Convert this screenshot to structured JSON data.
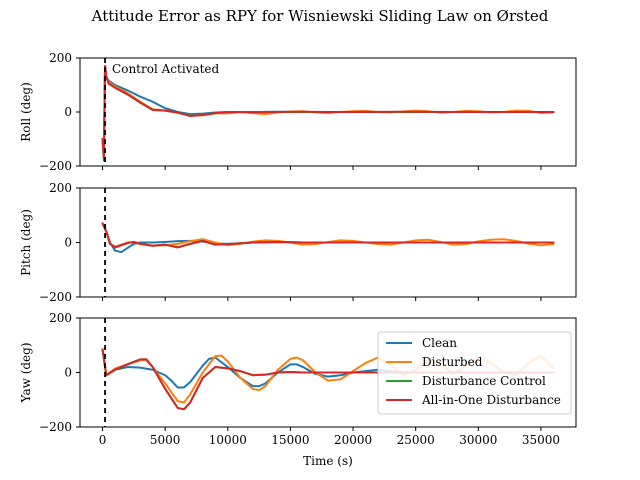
{
  "chart_data": {
    "type": "line",
    "title": "Attitude Error as RPY for Wisniewski Sliding Law on Ørsted",
    "xlabel": "Time (s)",
    "xlim": [
      -1800,
      37800
    ],
    "x_ticks": [
      0,
      5000,
      10000,
      15000,
      20000,
      25000,
      30000,
      35000
    ],
    "x_tick_labels": [
      "0",
      "5000",
      "10000",
      "15000",
      "20000",
      "25000",
      "30000",
      "35000"
    ],
    "legend": {
      "placement": "lower-right",
      "entries": [
        "Clean",
        "Disturbed",
        "Disturbance Control",
        "All-in-One Disturbance"
      ]
    },
    "colors": {
      "Clean": "#1f77b4",
      "Disturbed": "#ff7f0e",
      "Disturbance Control": "#2ca02c",
      "All-in-One Disturbance": "#d62728"
    },
    "control_activation": {
      "x": 200,
      "label": "Control Activated"
    },
    "panels": [
      {
        "ylabel": "Roll (deg)",
        "ylim": [
          -200,
          200
        ],
        "y_ticks": [
          -200,
          0,
          200
        ],
        "y_tick_labels": [
          "−200",
          "0",
          "200"
        ],
        "series": [
          {
            "name": "Clean",
            "x": [
              0,
              100,
              200,
              300,
              500,
              1000,
              2000,
              3000,
              4000,
              5000,
              6000,
              7000,
              8000,
              9000,
              10000,
              12000,
              14000,
              16000,
              18000,
              20000,
              22000,
              24000,
              26000,
              28000,
              30000,
              32000,
              34000,
              36000
            ],
            "y": [
              -100,
              -180,
              170,
              130,
              115,
              100,
              80,
              57,
              38,
              14,
              0,
              -8,
              -6,
              -2,
              0,
              0,
              1,
              0,
              0,
              0,
              0,
              0,
              0,
              0,
              0,
              0,
              0,
              0
            ]
          },
          {
            "name": "Disturbed",
            "x": [
              0,
              100,
              200,
              300,
              500,
              1000,
              2000,
              3000,
              4000,
              5000,
              6000,
              7000,
              8000,
              9000,
              10000,
              11000,
              12000,
              13000,
              14000,
              15000,
              16000,
              17000,
              18000,
              19000,
              20000,
              21000,
              22000,
              23000,
              24000,
              25000,
              26000,
              27000,
              28000,
              29000,
              30000,
              31000,
              32000,
              33000,
              34000,
              35000,
              36000
            ],
            "y": [
              -100,
              -170,
              170,
              130,
              110,
              95,
              70,
              38,
              10,
              5,
              -3,
              -14,
              -12,
              -5,
              -5,
              0,
              -4,
              -8,
              -2,
              2,
              3,
              -2,
              -4,
              0,
              3,
              4,
              0,
              -2,
              2,
              5,
              3,
              -3,
              0,
              4,
              3,
              -2,
              0,
              5,
              4,
              -4,
              -2
            ]
          },
          {
            "name": "Disturbance Control",
            "x": [
              0,
              100,
              200,
              300,
              500,
              1000,
              2000,
              3000,
              4000,
              5000,
              6000,
              7000,
              8000,
              9000,
              10000,
              12000,
              14000,
              16000,
              18000,
              20000,
              24000,
              28000,
              32000,
              36000
            ],
            "y": [
              -100,
              -170,
              170,
              130,
              105,
              90,
              65,
              35,
              8,
              5,
              -2,
              -14,
              -11,
              -4,
              0,
              -1,
              0,
              0,
              0,
              0,
              0,
              0,
              0,
              0
            ]
          },
          {
            "name": "All-in-One Disturbance",
            "x": [
              0,
              100,
              200,
              300,
              500,
              1000,
              2000,
              3000,
              4000,
              5000,
              6000,
              7000,
              8000,
              9000,
              10000,
              12000,
              14000,
              16000,
              18000,
              20000,
              24000,
              28000,
              32000,
              36000
            ],
            "y": [
              -100,
              -170,
              170,
              130,
              105,
              90,
              65,
              35,
              8,
              5,
              -2,
              -15,
              -11,
              -4,
              0,
              -1,
              0,
              1,
              0,
              0,
              1,
              0,
              0,
              0
            ]
          }
        ]
      },
      {
        "ylabel": "Pitch (deg)",
        "ylim": [
          -200,
          200
        ],
        "y_ticks": [
          -200,
          0,
          200
        ],
        "y_tick_labels": [
          "−200",
          "0",
          "200"
        ],
        "series": [
          {
            "name": "Clean",
            "x": [
              0,
              300,
              600,
              1000,
              1500,
              2000,
              2500,
              3000,
              4000,
              5000,
              6000,
              7000,
              8000,
              9000,
              10000,
              12000,
              14000,
              16000,
              20000,
              24000,
              28000,
              32000,
              36000
            ],
            "y": [
              70,
              40,
              0,
              -30,
              -35,
              -20,
              -5,
              0,
              0,
              2,
              5,
              6,
              3,
              -3,
              -5,
              0,
              2,
              0,
              0,
              0,
              0,
              0,
              0
            ]
          },
          {
            "name": "Disturbed",
            "x": [
              0,
              300,
              600,
              1000,
              1500,
              2000,
              2500,
              3000,
              4000,
              5000,
              6000,
              7000,
              8000,
              9000,
              10000,
              11000,
              12000,
              13000,
              14000,
              15000,
              16000,
              17000,
              18000,
              19000,
              20000,
              21000,
              22000,
              23000,
              24000,
              25000,
              26000,
              27000,
              28000,
              29000,
              30000,
              31000,
              32000,
              33000,
              34000,
              35000,
              36000
            ],
            "y": [
              70,
              40,
              -5,
              -15,
              -8,
              0,
              2,
              -5,
              -12,
              -10,
              -5,
              5,
              12,
              0,
              -10,
              -5,
              3,
              8,
              6,
              0,
              -8,
              -6,
              2,
              8,
              6,
              0,
              -6,
              -8,
              0,
              8,
              10,
              2,
              -8,
              -6,
              4,
              10,
              12,
              6,
              -4,
              -10,
              -6
            ]
          },
          {
            "name": "Disturbance Control",
            "x": [
              0,
              300,
              600,
              1000,
              1500,
              2000,
              2500,
              3000,
              4000,
              5000,
              6000,
              7000,
              8000,
              9000,
              10000,
              12000,
              14000,
              16000,
              20000,
              24000,
              28000,
              32000,
              36000
            ],
            "y": [
              70,
              40,
              -5,
              -18,
              -10,
              -2,
              2,
              -5,
              -12,
              -8,
              -18,
              -5,
              6,
              -8,
              -6,
              0,
              2,
              0,
              0,
              0,
              0,
              0,
              0
            ]
          },
          {
            "name": "All-in-One Disturbance",
            "x": [
              0,
              300,
              600,
              1000,
              1500,
              2000,
              2500,
              3000,
              4000,
              5000,
              6000,
              7000,
              8000,
              9000,
              10000,
              12000,
              14000,
              16000,
              20000,
              24000,
              28000,
              32000,
              36000
            ],
            "y": [
              70,
              40,
              -5,
              -18,
              -10,
              -2,
              2,
              -5,
              -12,
              -8,
              -18,
              -5,
              6,
              -8,
              -6,
              0,
              2,
              0,
              0,
              0,
              0,
              0,
              0
            ]
          }
        ]
      },
      {
        "ylabel": "Yaw (deg)",
        "ylim": [
          -200,
          200
        ],
        "y_ticks": [
          -200,
          0,
          200
        ],
        "y_tick_labels": [
          "−200",
          "0",
          "200"
        ],
        "series": [
          {
            "name": "Clean",
            "x": [
              0,
              300,
              1000,
              2000,
              3000,
              4000,
              5000,
              5500,
              6000,
              6500,
              7000,
              7500,
              8000,
              8500,
              9000,
              10000,
              11000,
              12000,
              12500,
              13000,
              14000,
              15000,
              15500,
              16000,
              17000,
              18000,
              19000,
              20000,
              22000,
              24000,
              26000,
              28000,
              30000,
              32000,
              34000,
              36000
            ],
            "y": [
              85,
              -10,
              10,
              20,
              18,
              10,
              -10,
              -30,
              -55,
              -55,
              -35,
              -5,
              25,
              50,
              55,
              20,
              -20,
              -50,
              -50,
              -40,
              0,
              30,
              30,
              20,
              -5,
              -15,
              -10,
              0,
              10,
              0,
              0,
              0,
              0,
              0,
              0,
              0
            ]
          },
          {
            "name": "Disturbed",
            "x": [
              0,
              300,
              1000,
              2000,
              3000,
              3500,
              4000,
              5000,
              6000,
              6500,
              7000,
              8000,
              9000,
              9500,
              10000,
              11000,
              12000,
              12500,
              13000,
              14000,
              15000,
              15500,
              16000,
              17000,
              18000,
              19000,
              20000,
              21000,
              22000,
              23000,
              24000,
              25000,
              26000,
              27000,
              28000,
              29000,
              30000,
              31000,
              32000,
              33000,
              34000,
              35000,
              36000
            ],
            "y": [
              85,
              -10,
              15,
              30,
              45,
              45,
              20,
              -40,
              -105,
              -110,
              -80,
              0,
              60,
              62,
              40,
              -20,
              -60,
              -65,
              -50,
              10,
              50,
              55,
              45,
              0,
              -30,
              -25,
              5,
              35,
              55,
              30,
              -10,
              10,
              45,
              30,
              -5,
              25,
              55,
              35,
              0,
              -10,
              35,
              60,
              15
            ]
          },
          {
            "name": "Disturbance Control",
            "x": [
              0,
              300,
              1000,
              2000,
              3000,
              3500,
              4000,
              5000,
              6000,
              6500,
              7000,
              8000,
              9000,
              10000,
              11000,
              12000,
              13000,
              14000,
              15000,
              16000,
              18000,
              20000,
              22000,
              24000,
              26000,
              28000,
              30000,
              32000,
              36000
            ],
            "y": [
              85,
              -10,
              10,
              30,
              48,
              48,
              20,
              -60,
              -130,
              -135,
              -110,
              -20,
              20,
              15,
              5,
              -10,
              -8,
              0,
              2,
              0,
              0,
              0,
              0,
              0,
              0,
              0,
              0,
              0,
              0
            ]
          },
          {
            "name": "All-in-One Disturbance",
            "x": [
              0,
              300,
              1000,
              2000,
              3000,
              3500,
              4000,
              5000,
              6000,
              6500,
              7000,
              8000,
              9000,
              10000,
              11000,
              12000,
              13000,
              14000,
              15000,
              16000,
              18000,
              20000,
              22000,
              24000,
              26000,
              28000,
              30000,
              32000,
              36000
            ],
            "y": [
              85,
              -10,
              10,
              30,
              48,
              48,
              20,
              -60,
              -130,
              -135,
              -110,
              -20,
              20,
              15,
              5,
              -10,
              -8,
              0,
              2,
              0,
              0,
              0,
              0,
              0,
              0,
              0,
              0,
              0,
              0
            ]
          }
        ]
      }
    ]
  }
}
